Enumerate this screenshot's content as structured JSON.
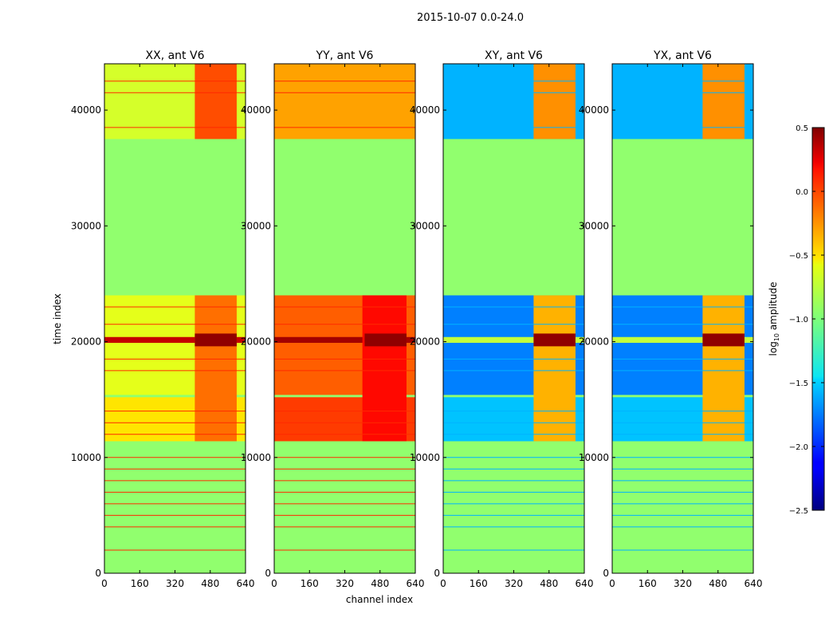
{
  "figure_title": "2015-10-07 0.0-24.0",
  "colors": {
    "background": "#7fff7f",
    "axis": "#000000"
  },
  "chart_data": {
    "type": "heatmap",
    "title": "2015-10-07 0.0-24.0",
    "xlabel": "channel index",
    "ylabel": "time index",
    "xlim": [
      0,
      640
    ],
    "ylim": [
      0,
      44000
    ],
    "xticks": [
      0,
      160,
      320,
      480,
      640
    ],
    "yticks": [
      0,
      10000,
      20000,
      30000,
      40000
    ],
    "colorbar": {
      "label_main": "log",
      "label_sub": "10",
      "label_rest": " amplitude",
      "vmin": -2.5,
      "vmax": 0.5,
      "ticks": [
        "0.5",
        "0.0",
        "−0.5",
        "−1.0",
        "−1.5",
        "−2.0",
        "−2.5"
      ],
      "tick_values": [
        0.5,
        0.0,
        -0.5,
        -1.0,
        -1.5,
        -2.0,
        -2.5
      ],
      "colormap": "jet"
    },
    "panels": [
      {
        "title": "XX, ant V6",
        "background": -0.95,
        "bands": [
          {
            "t0": 37500,
            "t1": 44000,
            "c0": 0,
            "c1": 640,
            "value": -0.75
          },
          {
            "t0": 15400,
            "t1": 24000,
            "c0": 0,
            "c1": 640,
            "value": -0.7
          },
          {
            "t0": 19900,
            "t1": 20400,
            "c0": 0,
            "c1": 640,
            "value": 0.3
          },
          {
            "t0": 11400,
            "t1": 15200,
            "c0": 0,
            "c1": 640,
            "value": -0.55
          },
          {
            "t0": 11400,
            "t1": 24000,
            "c0": 410,
            "c1": 600,
            "value": -0.2
          },
          {
            "t0": 37500,
            "t1": 44000,
            "c0": 410,
            "c1": 600,
            "value": -0.1
          },
          {
            "t0": 19600,
            "t1": 20700,
            "c0": 410,
            "c1": 600,
            "value": 0.45
          }
        ],
        "lines": [
          2000,
          4000,
          5000,
          6000,
          7000,
          8000,
          9000,
          10000,
          12000,
          13000,
          14000,
          17500,
          18500,
          21500,
          23000,
          38500,
          41500,
          42500
        ],
        "line_value": 0.0
      },
      {
        "title": "YY, ant V6",
        "background": -0.95,
        "bands": [
          {
            "t0": 37500,
            "t1": 44000,
            "c0": 0,
            "c1": 640,
            "value": -0.35
          },
          {
            "t0": 15400,
            "t1": 24000,
            "c0": 0,
            "c1": 640,
            "value": -0.15
          },
          {
            "t0": 19900,
            "t1": 20400,
            "c0": 0,
            "c1": 640,
            "value": 0.4
          },
          {
            "t0": 11400,
            "t1": 15200,
            "c0": 0,
            "c1": 640,
            "value": -0.05
          },
          {
            "t0": 11400,
            "t1": 24000,
            "c0": 400,
            "c1": 600,
            "value": 0.1
          },
          {
            "t0": 19600,
            "t1": 20700,
            "c0": 410,
            "c1": 600,
            "value": 0.45
          }
        ],
        "lines": [
          2000,
          4000,
          5000,
          6000,
          7000,
          8000,
          9000,
          10000,
          12000,
          13000,
          14000,
          17500,
          18500,
          21500,
          23000,
          38500,
          41500,
          42500
        ],
        "line_value": 0.0
      },
      {
        "title": "XY, ant V6",
        "background": -0.95,
        "bands": [
          {
            "t0": 37500,
            "t1": 44000,
            "c0": 0,
            "c1": 640,
            "value": -1.6
          },
          {
            "t0": 15400,
            "t1": 24000,
            "c0": 0,
            "c1": 640,
            "value": -1.75
          },
          {
            "t0": 19900,
            "t1": 20400,
            "c0": 0,
            "c1": 640,
            "value": -0.8
          },
          {
            "t0": 11400,
            "t1": 15200,
            "c0": 0,
            "c1": 640,
            "value": -1.55
          },
          {
            "t0": 11400,
            "t1": 24000,
            "c0": 410,
            "c1": 600,
            "value": -0.4
          },
          {
            "t0": 37500,
            "t1": 44000,
            "c0": 410,
            "c1": 600,
            "value": -0.3
          },
          {
            "t0": 19600,
            "t1": 20700,
            "c0": 410,
            "c1": 600,
            "value": 0.45
          }
        ],
        "lines": [
          2000,
          4000,
          5000,
          6000,
          7000,
          8000,
          9000,
          10000,
          12000,
          13000,
          14000,
          17500,
          18500,
          21500,
          23000,
          38500,
          41500,
          42500
        ],
        "line_value": -1.6
      },
      {
        "title": "YX, ant V6",
        "background": -0.95,
        "bands": [
          {
            "t0": 37500,
            "t1": 44000,
            "c0": 0,
            "c1": 640,
            "value": -1.6
          },
          {
            "t0": 15400,
            "t1": 24000,
            "c0": 0,
            "c1": 640,
            "value": -1.75
          },
          {
            "t0": 19900,
            "t1": 20400,
            "c0": 0,
            "c1": 640,
            "value": -0.8
          },
          {
            "t0": 11400,
            "t1": 15200,
            "c0": 0,
            "c1": 640,
            "value": -1.55
          },
          {
            "t0": 11400,
            "t1": 24000,
            "c0": 410,
            "c1": 600,
            "value": -0.4
          },
          {
            "t0": 37500,
            "t1": 44000,
            "c0": 410,
            "c1": 600,
            "value": -0.3
          },
          {
            "t0": 19600,
            "t1": 20700,
            "c0": 410,
            "c1": 600,
            "value": 0.45
          }
        ],
        "lines": [
          2000,
          4000,
          5000,
          6000,
          7000,
          8000,
          9000,
          10000,
          12000,
          13000,
          14000,
          17500,
          18500,
          21500,
          23000,
          38500,
          41500,
          42500
        ],
        "line_value": -1.6
      }
    ]
  }
}
